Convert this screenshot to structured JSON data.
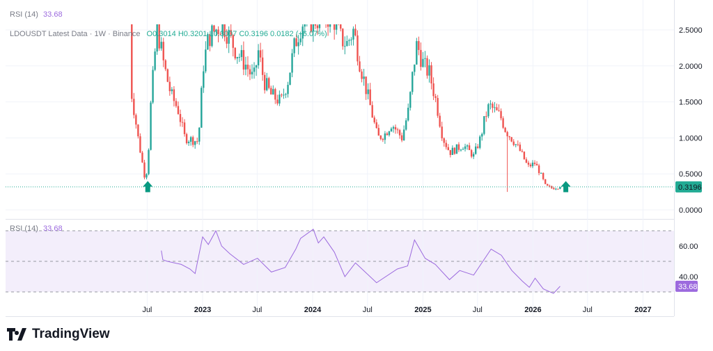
{
  "chart_data": {
    "type": "candlestick",
    "symbol_line": "LDOUSDT Latest Data · 1W · Binance",
    "ohlc": {
      "o_label": "O",
      "o": "0.3014",
      "h_label": "H",
      "h": "0.3201",
      "l_label": "L",
      "l": "0.3007",
      "c_label": "C",
      "c": "0.3196",
      "change": "0.0182 (+6.07%)"
    },
    "last_price": 0.3196,
    "last_price_label": "0.3196",
    "price_axis": {
      "ticks": [
        "2.5000",
        "2.0000",
        "1.5000",
        "1.0000",
        "0.5000",
        "0.0000"
      ],
      "values": [
        2.5,
        2.0,
        1.5,
        1.0,
        0.5,
        0.0
      ],
      "range": [
        -0.15,
        2.55
      ]
    },
    "time_axis": {
      "labels": [
        "Jul",
        "2023",
        "Jul",
        "2024",
        "Jul",
        "2025",
        "Jul",
        "2026",
        "Jul",
        "2027"
      ],
      "dates": [
        "2022-07-01",
        "2023-01-01",
        "2023-07-01",
        "2024-01-01",
        "2024-07-01",
        "2025-01-01",
        "2025-07-01",
        "2026-01-01",
        "2026-07-01",
        "2027-01-01"
      ]
    },
    "close_keypoints": [
      [
        "2022-05-04",
        2.7
      ],
      [
        "2022-05-11",
        1.6
      ],
      [
        "2022-06-01",
        1.0
      ],
      [
        "2022-06-22",
        0.48
      ],
      [
        "2022-07-03",
        0.55
      ],
      [
        "2022-07-10",
        1.3
      ],
      [
        "2022-08-03",
        2.55
      ],
      [
        "2022-08-26",
        2.0
      ],
      [
        "2022-09-18",
        1.6
      ],
      [
        "2022-10-11",
        1.4
      ],
      [
        "2022-11-03",
        1.0
      ],
      [
        "2022-12-18",
        0.95
      ],
      [
        "2023-01-03",
        2.0
      ],
      [
        "2023-01-21",
        2.4
      ],
      [
        "2023-03-08",
        2.6
      ],
      [
        "2023-04-23",
        2.2
      ],
      [
        "2023-05-27",
        2.0
      ],
      [
        "2023-06-19",
        1.8
      ],
      [
        "2023-07-05",
        2.2
      ],
      [
        "2023-07-23",
        1.8
      ],
      [
        "2023-08-15",
        1.6
      ],
      [
        "2023-09-18",
        1.5
      ],
      [
        "2023-10-11",
        1.8
      ],
      [
        "2023-11-03",
        2.3
      ],
      [
        "2023-11-26",
        2.6
      ],
      [
        "2024-03-08",
        2.7
      ],
      [
        "2024-03-31",
        2.4
      ],
      [
        "2024-04-23",
        2.3
      ],
      [
        "2024-05-16",
        2.5
      ],
      [
        "2024-06-08",
        2.0
      ],
      [
        "2024-07-01",
        1.6
      ],
      [
        "2024-08-04",
        1.0
      ],
      [
        "2024-08-27",
        1.05
      ],
      [
        "2024-09-19",
        1.2
      ],
      [
        "2024-10-23",
        1.0
      ],
      [
        "2024-11-15",
        1.4
      ],
      [
        "2024-12-01",
        2.0
      ],
      [
        "2024-12-12",
        2.3
      ],
      [
        "2025-01-04",
        2.0
      ],
      [
        "2025-01-22",
        1.9
      ],
      [
        "2025-02-14",
        1.5
      ],
      [
        "2025-03-08",
        1.0
      ],
      [
        "2025-03-31",
        0.8
      ],
      [
        "2025-05-15",
        0.9
      ],
      [
        "2025-06-18",
        0.75
      ],
      [
        "2025-07-11",
        1.0
      ],
      [
        "2025-07-27",
        1.3
      ],
      [
        "2025-08-09",
        1.45
      ],
      [
        "2025-09-15",
        1.3
      ],
      [
        "2025-10-03",
        1.1
      ],
      [
        "2025-10-30",
        0.95
      ],
      [
        "2025-11-22",
        0.8
      ],
      [
        "2025-12-15",
        0.6
      ],
      [
        "2026-01-08",
        0.65
      ],
      [
        "2026-01-26",
        0.5
      ],
      [
        "2026-02-12",
        0.33
      ],
      [
        "2026-03-07",
        0.3
      ],
      [
        "2026-04-01",
        0.3196
      ]
    ],
    "notable_low": {
      "date": "2025-10-10",
      "low": 0.25
    },
    "signal_arrows": [
      {
        "date": "2022-07-03",
        "direction": "up"
      },
      {
        "date": "2026-04-20",
        "direction": "up"
      }
    ],
    "colors": {
      "up": "#26a69a",
      "down": "#ef5350",
      "last_price": "#22ab94",
      "rsi": "#9c6ade",
      "rsi_band": "#f3eefb",
      "arrow": "#089981"
    },
    "rsi": {
      "title": "RSI (14)",
      "value_label": "33.68",
      "value": 33.68,
      "ticks": [
        "60.00",
        "40.00"
      ],
      "tick_values": [
        60,
        40
      ],
      "bands": [
        70,
        50,
        30
      ],
      "range": [
        28,
        72
      ],
      "points": [
        [
          "2022-08-17",
          57
        ],
        [
          "2022-08-22",
          51
        ],
        [
          "2022-09-06",
          50
        ],
        [
          "2022-10-22",
          48
        ],
        [
          "2022-11-20",
          45
        ],
        [
          "2022-12-07",
          42
        ],
        [
          "2023-01-01",
          66
        ],
        [
          "2023-01-20",
          61
        ],
        [
          "2023-02-14",
          70
        ],
        [
          "2023-03-05",
          60
        ],
        [
          "2023-04-01",
          55
        ],
        [
          "2023-05-17",
          48
        ],
        [
          "2023-07-02",
          52
        ],
        [
          "2023-08-17",
          43
        ],
        [
          "2023-10-02",
          46
        ],
        [
          "2023-11-06",
          58
        ],
        [
          "2023-11-22",
          65
        ],
        [
          "2024-01-03",
          71
        ],
        [
          "2024-01-20",
          62
        ],
        [
          "2024-02-07",
          66
        ],
        [
          "2024-03-13",
          56
        ],
        [
          "2024-04-17",
          40
        ],
        [
          "2024-05-22",
          49
        ],
        [
          "2024-07-31",
          36
        ],
        [
          "2024-10-08",
          45
        ],
        [
          "2024-11-11",
          47
        ],
        [
          "2024-12-04",
          64
        ],
        [
          "2025-01-08",
          52
        ],
        [
          "2025-02-11",
          48
        ],
        [
          "2025-03-30",
          38
        ],
        [
          "2025-05-03",
          44
        ],
        [
          "2025-06-18",
          41
        ],
        [
          "2025-08-15",
          58
        ],
        [
          "2025-09-18",
          54
        ],
        [
          "2025-10-23",
          44
        ],
        [
          "2025-11-27",
          37
        ],
        [
          "2025-12-20",
          33
        ],
        [
          "2026-01-08",
          39
        ],
        [
          "2026-02-04",
          32
        ],
        [
          "2026-03-10",
          29
        ],
        [
          "2026-04-01",
          33.68
        ]
      ]
    }
  },
  "header": {
    "rsi_title": "RSI (14)",
    "rsi_value": "33.68"
  },
  "brand": {
    "name": "TradingView"
  }
}
